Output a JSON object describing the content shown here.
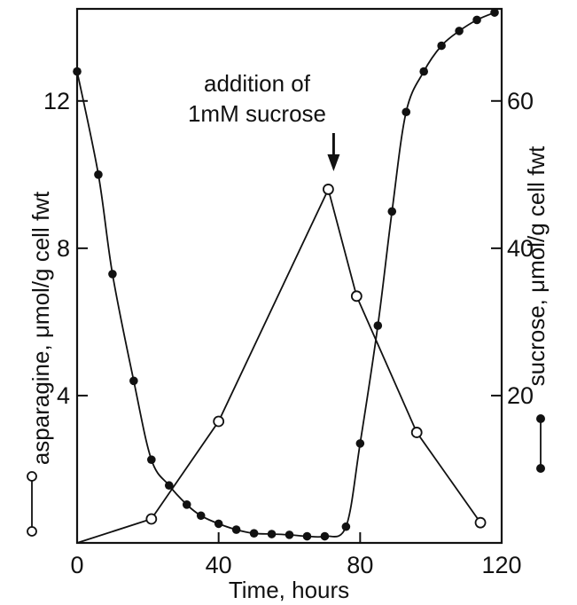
{
  "chart_data": {
    "type": "line",
    "title": "",
    "xlabel": "Time, hours",
    "ylabel_left": "asparagine, μmol/g cell fwt",
    "ylabel_right": "sucrose, μmol/g cell fwt",
    "xlim": [
      0,
      120
    ],
    "ylim_left": [
      0,
      14.5
    ],
    "ylim_right": [
      0,
      72.5
    ],
    "xticks": [
      0,
      40,
      80,
      120
    ],
    "yticks_left": [
      4,
      8,
      12
    ],
    "yticks_right": [
      20,
      40,
      60
    ],
    "grid": false,
    "annotation": {
      "line1": "addition of",
      "line2": "1mM sucrose",
      "x": 72
    },
    "series": [
      {
        "axis": "left",
        "marker": "open-circle",
        "points": [
          {
            "x": 0,
            "y": 0.0
          },
          {
            "x": 21,
            "y": 0.65
          },
          {
            "x": 40,
            "y": 3.3
          },
          {
            "x": 71,
            "y": 9.6
          },
          {
            "x": 79,
            "y": 6.7
          },
          {
            "x": 96,
            "y": 3.0
          },
          {
            "x": 114,
            "y": 0.55
          }
        ]
      },
      {
        "axis": "right",
        "marker": "filled-circle",
        "points": [
          {
            "x": 0,
            "y": 64
          },
          {
            "x": 6,
            "y": 50
          },
          {
            "x": 10,
            "y": 36.5
          },
          {
            "x": 16,
            "y": 22
          },
          {
            "x": 21,
            "y": 11.3
          },
          {
            "x": 26,
            "y": 7.8
          },
          {
            "x": 31,
            "y": 5.2
          },
          {
            "x": 35,
            "y": 3.7
          },
          {
            "x": 40,
            "y": 2.6
          },
          {
            "x": 45,
            "y": 1.8
          },
          {
            "x": 50,
            "y": 1.3
          },
          {
            "x": 55,
            "y": 1.2
          },
          {
            "x": 60,
            "y": 1.1
          },
          {
            "x": 65,
            "y": 0.9
          },
          {
            "x": 70,
            "y": 0.9
          },
          {
            "x": 76,
            "y": 2.2
          },
          {
            "x": 80,
            "y": 13.5
          },
          {
            "x": 85,
            "y": 29.5
          },
          {
            "x": 89,
            "y": 45
          },
          {
            "x": 93,
            "y": 58.5
          },
          {
            "x": 98,
            "y": 64
          },
          {
            "x": 103,
            "y": 67.5
          },
          {
            "x": 108,
            "y": 69.5
          },
          {
            "x": 113,
            "y": 71
          },
          {
            "x": 118,
            "y": 72
          }
        ]
      }
    ]
  }
}
